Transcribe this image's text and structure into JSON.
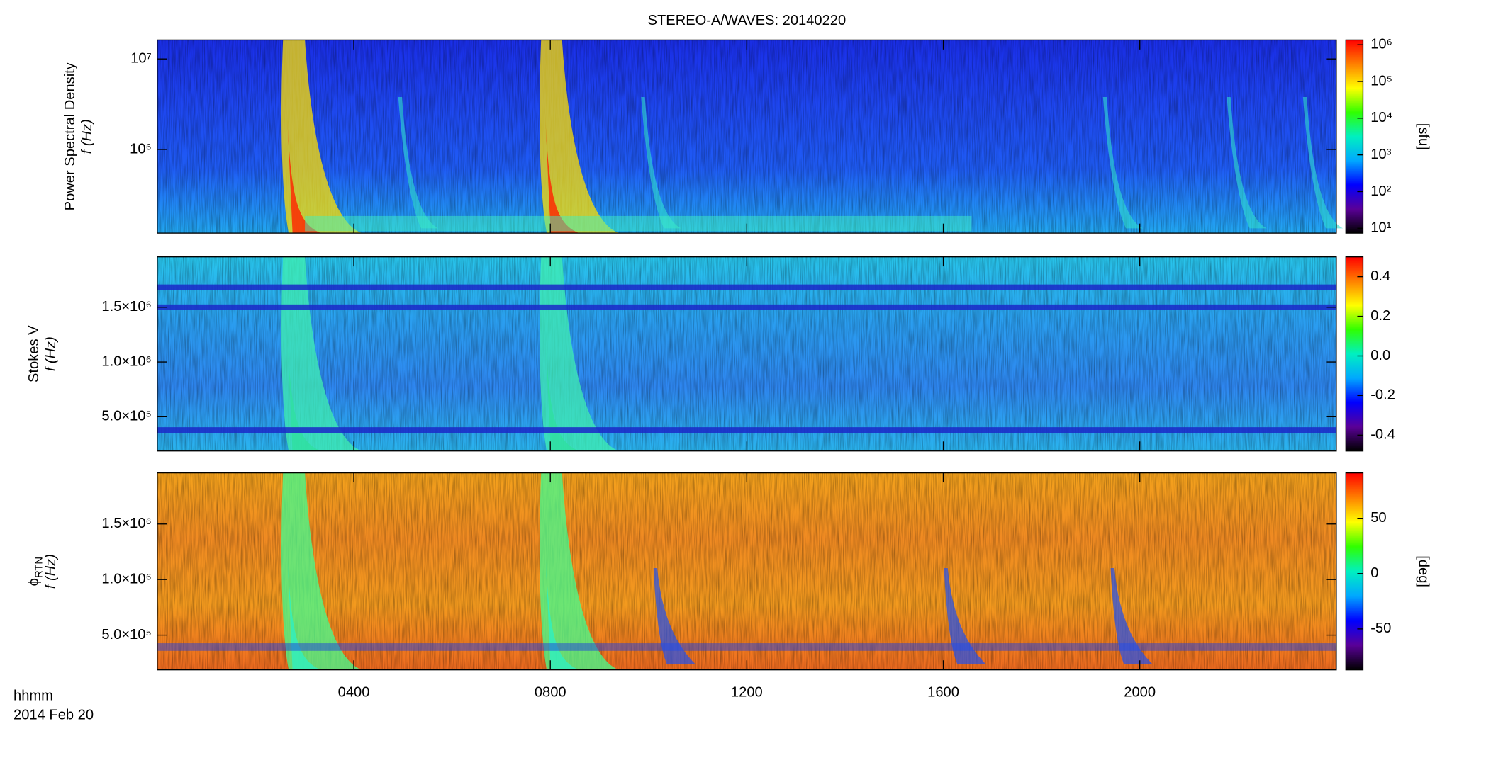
{
  "chart_data": [
    {
      "type": "spectrogram",
      "title": "STEREO-A/WAVES: 20140220",
      "ylabel": [
        "Power Spectral Density",
        "f (Hz)"
      ],
      "ylog": true,
      "ylim": [
        119000,
        16200000
      ],
      "yticks": [
        {
          "value": 1000000,
          "label": "10⁶"
        },
        {
          "value": 10000000,
          "label": "10⁷"
        }
      ],
      "colorbar": {
        "log": true,
        "lim": [
          7.4,
          1350000
        ],
        "label": "[sfu]",
        "ticks": [
          {
            "value": 10,
            "label": "10¹"
          },
          {
            "value": 100,
            "label": "10²"
          },
          {
            "value": 1000,
            "label": "10³"
          },
          {
            "value": 10000,
            "label": "10⁴"
          },
          {
            "value": 100000,
            "label": "10⁵"
          },
          {
            "value": 1000000,
            "label": "10⁶"
          }
        ]
      },
      "background": [
        "#1a2ee8",
        "#1e46f0",
        "#1f5cf5",
        "#22a8f2"
      ],
      "colormap": [
        "#000000",
        "#5a0098",
        "#0000ff",
        "#00a8ff",
        "#00f0c0",
        "#30ff00",
        "#ffff00",
        "#ff8000",
        "#ff0000"
      ]
    },
    {
      "type": "spectrogram",
      "ylabel": [
        "Stokes V",
        "f (Hz)"
      ],
      "ylog": false,
      "ylim": [
        187000,
        1960000
      ],
      "yticks": [
        {
          "value": 500000,
          "label": "5.0×10⁵"
        },
        {
          "value": 1000000,
          "label": "1.0×10⁶"
        },
        {
          "value": 1500000,
          "label": "1.5×10⁶"
        }
      ],
      "colorbar": {
        "log": false,
        "lim": [
          -0.48,
          0.5
        ],
        "label": "",
        "ticks": [
          -0.4,
          -0.2,
          {
            "value": 0,
            "label": "0.0"
          },
          0.2,
          0.4
        ]
      },
      "background": [
        "#28c6ec",
        "#2a9ef0",
        "#2e86f0",
        "#2ab4ee"
      ],
      "colormap": [
        "#000000",
        "#5a0098",
        "#0000ff",
        "#00a8ff",
        "#00f0c0",
        "#30ff00",
        "#ffff00",
        "#ff8000",
        "#ff0000"
      ]
    },
    {
      "type": "spectrogram",
      "ylabel": [
        "ϕ",
        "f (Hz)"
      ],
      "ylabel_sub": "RTN",
      "ylog": false,
      "ylim": [
        187000,
        1960000
      ],
      "yticks": [
        {
          "value": 500000,
          "label": "5.0×10⁵"
        },
        {
          "value": 1000000,
          "label": "1.0×10⁶"
        },
        {
          "value": 1500000,
          "label": "1.5×10⁶"
        }
      ],
      "colorbar": {
        "log": false,
        "lim": [
          -87,
          91
        ],
        "label": "[deg]",
        "ticks": [
          -50,
          0,
          50
        ]
      },
      "background": [
        "#f4a21c",
        "#f08a22",
        "#f39a1e",
        "#ee6a20"
      ],
      "colormap": [
        "#000000",
        "#5a0098",
        "#0000ff",
        "#00a8ff",
        "#00f0c0",
        "#30ff00",
        "#ffff00",
        "#ff8000",
        "#ff0000"
      ],
      "xlim": [
        0,
        24
      ],
      "xticks": [
        {
          "value": 4,
          "label": "0400"
        },
        {
          "value": 8,
          "label": "0800"
        },
        {
          "value": 12,
          "label": "1200"
        },
        {
          "value": 16,
          "label": "1600"
        },
        {
          "value": 20,
          "label": "2000"
        }
      ],
      "xlabel": [
        "hhmm",
        "2014 Feb 20"
      ]
    }
  ]
}
